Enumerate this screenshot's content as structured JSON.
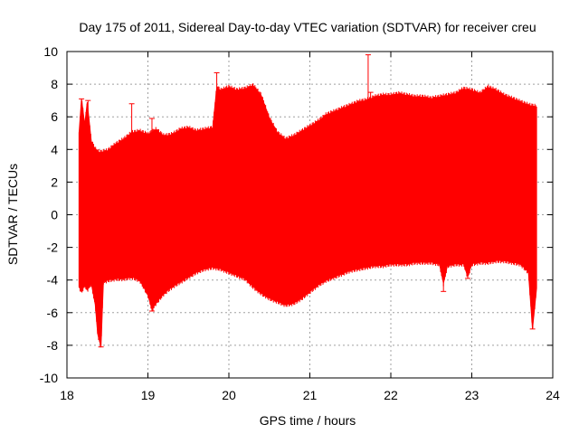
{
  "chart_data": {
    "type": "line",
    "title": "Day 175 of 2011, Sidereal Day-to-day VTEC variation (SDTVAR) for receiver creu",
    "xlabel": "GPS time / hours",
    "ylabel": "SDTVAR / TECUs",
    "xlim": [
      18,
      24
    ],
    "ylim": [
      -10,
      10
    ],
    "x_ticks": [
      "18",
      "19",
      "20",
      "21",
      "22",
      "23",
      "24"
    ],
    "y_ticks": [
      "-10",
      "-8",
      "-6",
      "-4",
      "-2",
      "0",
      "2",
      "4",
      "6",
      "8",
      "10"
    ],
    "grid": true,
    "series_color": "#ff0000",
    "series": [
      {
        "style": "error-bars",
        "upper": [
          [
            18.15,
            5.0
          ],
          [
            18.18,
            7.1
          ],
          [
            18.22,
            5.5
          ],
          [
            18.25,
            6.9
          ],
          [
            18.3,
            4.5
          ],
          [
            18.35,
            4.0
          ],
          [
            18.4,
            3.8
          ],
          [
            18.5,
            3.9
          ],
          [
            18.6,
            4.3
          ],
          [
            18.7,
            4.6
          ],
          [
            18.8,
            5.0
          ],
          [
            18.9,
            5.1
          ],
          [
            19.0,
            4.9
          ],
          [
            19.1,
            5.2
          ],
          [
            19.2,
            4.8
          ],
          [
            19.3,
            4.9
          ],
          [
            19.4,
            5.2
          ],
          [
            19.5,
            5.3
          ],
          [
            19.6,
            5.1
          ],
          [
            19.7,
            5.2
          ],
          [
            19.8,
            5.3
          ],
          [
            19.85,
            7.8
          ],
          [
            19.9,
            7.6
          ],
          [
            20.0,
            7.8
          ],
          [
            20.1,
            7.6
          ],
          [
            20.2,
            7.7
          ],
          [
            20.3,
            7.9
          ],
          [
            20.4,
            7.3
          ],
          [
            20.5,
            5.9
          ],
          [
            20.6,
            5.0
          ],
          [
            20.7,
            4.6
          ],
          [
            20.8,
            4.8
          ],
          [
            20.9,
            5.1
          ],
          [
            21.0,
            5.4
          ],
          [
            21.1,
            5.7
          ],
          [
            21.2,
            6.1
          ],
          [
            21.3,
            6.3
          ],
          [
            21.4,
            6.5
          ],
          [
            21.5,
            6.7
          ],
          [
            21.6,
            6.9
          ],
          [
            21.7,
            7.0
          ],
          [
            21.8,
            7.2
          ],
          [
            21.9,
            7.3
          ],
          [
            22.0,
            7.3
          ],
          [
            22.1,
            7.4
          ],
          [
            22.2,
            7.3
          ],
          [
            22.3,
            7.2
          ],
          [
            22.4,
            7.2
          ],
          [
            22.5,
            7.1
          ],
          [
            22.6,
            7.2
          ],
          [
            22.7,
            7.3
          ],
          [
            22.8,
            7.4
          ],
          [
            22.9,
            7.7
          ],
          [
            23.0,
            7.6
          ],
          [
            23.1,
            7.4
          ],
          [
            23.2,
            7.8
          ],
          [
            23.3,
            7.6
          ],
          [
            23.4,
            7.3
          ],
          [
            23.5,
            7.1
          ],
          [
            23.6,
            6.9
          ],
          [
            23.7,
            6.7
          ],
          [
            23.8,
            6.6
          ]
        ],
        "lower": [
          [
            18.15,
            -4.4
          ],
          [
            18.18,
            -4.7
          ],
          [
            18.22,
            -4.3
          ],
          [
            18.25,
            -4.6
          ],
          [
            18.3,
            -4.2
          ],
          [
            18.35,
            -5.5
          ],
          [
            18.38,
            -7.3
          ],
          [
            18.42,
            -8.1
          ],
          [
            18.45,
            -4.1
          ],
          [
            18.5,
            -4.0
          ],
          [
            18.6,
            -3.9
          ],
          [
            18.7,
            -3.9
          ],
          [
            18.8,
            -3.8
          ],
          [
            18.9,
            -4.0
          ],
          [
            19.0,
            -4.9
          ],
          [
            19.05,
            -5.8
          ],
          [
            19.1,
            -5.4
          ],
          [
            19.2,
            -4.8
          ],
          [
            19.3,
            -4.4
          ],
          [
            19.4,
            -4.1
          ],
          [
            19.5,
            -3.8
          ],
          [
            19.6,
            -3.5
          ],
          [
            19.7,
            -3.3
          ],
          [
            19.8,
            -3.2
          ],
          [
            19.9,
            -3.3
          ],
          [
            20.0,
            -3.5
          ],
          [
            20.1,
            -3.7
          ],
          [
            20.2,
            -3.9
          ],
          [
            20.3,
            -4.4
          ],
          [
            20.4,
            -4.8
          ],
          [
            20.5,
            -5.1
          ],
          [
            20.6,
            -5.3
          ],
          [
            20.7,
            -5.5
          ],
          [
            20.8,
            -5.4
          ],
          [
            20.9,
            -5.1
          ],
          [
            21.0,
            -4.7
          ],
          [
            21.1,
            -4.3
          ],
          [
            21.2,
            -4.0
          ],
          [
            21.3,
            -3.8
          ],
          [
            21.4,
            -3.6
          ],
          [
            21.5,
            -3.4
          ],
          [
            21.6,
            -3.3
          ],
          [
            21.7,
            -3.2
          ],
          [
            21.8,
            -3.1
          ],
          [
            21.9,
            -3.1
          ],
          [
            22.0,
            -3.0
          ],
          [
            22.1,
            -3.0
          ],
          [
            22.2,
            -3.0
          ],
          [
            22.3,
            -2.9
          ],
          [
            22.4,
            -2.9
          ],
          [
            22.5,
            -2.9
          ],
          [
            22.6,
            -3.0
          ],
          [
            22.65,
            -4.2
          ],
          [
            22.7,
            -3.1
          ],
          [
            22.8,
            -3.0
          ],
          [
            22.9,
            -3.0
          ],
          [
            22.95,
            -3.8
          ],
          [
            23.0,
            -3.0
          ],
          [
            23.1,
            -2.9
          ],
          [
            23.2,
            -2.9
          ],
          [
            23.3,
            -2.8
          ],
          [
            23.4,
            -2.8
          ],
          [
            23.5,
            -2.9
          ],
          [
            23.6,
            -3.0
          ],
          [
            23.7,
            -3.5
          ],
          [
            23.75,
            -7.0
          ],
          [
            23.8,
            -4.5
          ]
        ],
        "spikes": [
          [
            18.18,
            7.1
          ],
          [
            18.26,
            7.0
          ],
          [
            18.8,
            6.8
          ],
          [
            19.05,
            5.9
          ],
          [
            19.85,
            8.7
          ],
          [
            21.72,
            9.8
          ],
          [
            21.75,
            7.5
          ],
          [
            18.42,
            -8.1
          ],
          [
            19.05,
            -5.9
          ],
          [
            23.75,
            -7.0
          ],
          [
            22.65,
            -4.7
          ],
          [
            22.95,
            -3.9
          ]
        ]
      }
    ]
  }
}
